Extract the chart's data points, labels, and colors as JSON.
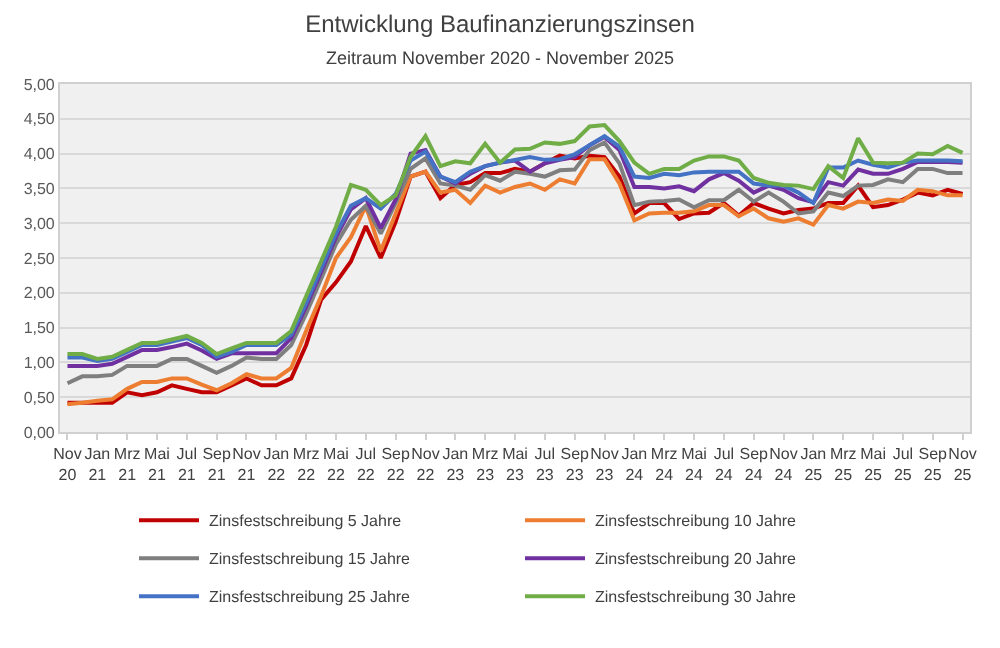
{
  "chart_data": {
    "type": "line",
    "title": "Entwicklung Baufinanzierungszinsen",
    "subtitle": "Zeitraum November 2020 - November 2025",
    "categories": [
      "Nov 20",
      null,
      "Jan 21",
      null,
      "Mrz 21",
      null,
      "Mai 21",
      null,
      "Jul 21",
      null,
      "Sep 21",
      null,
      "Nov 21",
      null,
      "Jan 22",
      null,
      "Mrz 22",
      null,
      "Mai 22",
      null,
      "Jul 22",
      null,
      "Sep 22",
      null,
      "Nov 22",
      null,
      "Jan 23",
      null,
      "Mrz 23",
      null,
      "Mai 23",
      null,
      "Jul 23",
      null,
      "Sep 23",
      null,
      "Nov 23",
      null,
      "Jan 24",
      null,
      "Mrz 24",
      null,
      "Mai 24",
      null,
      "Jul 24",
      null,
      "Sep 24",
      null,
      "Nov 24",
      null,
      "Jan 25",
      null,
      "Mrz 25",
      null,
      "Mai 25",
      null,
      "Jul 25",
      null,
      "Sep 25",
      null,
      "Nov 25"
    ],
    "series": [
      {
        "name": "Zinsfestschreibung 5 Jahre",
        "color": "#c00000",
        "values": [
          0.42,
          0.42,
          0.42,
          0.42,
          0.57,
          0.53,
          0.57,
          0.67,
          0.62,
          0.57,
          0.57,
          0.67,
          0.77,
          0.67,
          0.67,
          0.77,
          1.25,
          1.9,
          2.15,
          2.45,
          2.96,
          2.5,
          3.02,
          3.67,
          3.74,
          3.36,
          3.55,
          3.59,
          3.72,
          3.72,
          3.78,
          3.74,
          3.86,
          3.97,
          3.93,
          3.97,
          3.95,
          3.67,
          3.14,
          3.29,
          3.29,
          3.06,
          3.14,
          3.15,
          3.29,
          3.11,
          3.29,
          3.21,
          3.14,
          3.19,
          3.21,
          3.29,
          3.29,
          3.54,
          3.23,
          3.26,
          3.34,
          3.44,
          3.4,
          3.48,
          3.42
        ]
      },
      {
        "name": "Zinsfestschreibung 10 Jahre",
        "color": "#ed7d31",
        "values": [
          0.4,
          0.42,
          0.45,
          0.47,
          0.62,
          0.72,
          0.72,
          0.77,
          0.77,
          0.68,
          0.6,
          0.7,
          0.83,
          0.77,
          0.77,
          0.92,
          1.45,
          1.95,
          2.5,
          2.8,
          3.25,
          2.6,
          3.14,
          3.67,
          3.74,
          3.44,
          3.48,
          3.29,
          3.54,
          3.44,
          3.52,
          3.57,
          3.48,
          3.63,
          3.57,
          3.92,
          3.92,
          3.57,
          3.04,
          3.14,
          3.15,
          3.15,
          3.17,
          3.26,
          3.26,
          3.1,
          3.21,
          3.07,
          3.02,
          3.07,
          2.98,
          3.26,
          3.21,
          3.31,
          3.29,
          3.34,
          3.32,
          3.48,
          3.46,
          3.4,
          3.4
        ]
      },
      {
        "name": "Zinsfestschreibung 15 Jahre",
        "color": "#7f7f7f",
        "values": [
          0.7,
          0.8,
          0.8,
          0.82,
          0.95,
          0.95,
          0.95,
          1.05,
          1.05,
          0.95,
          0.85,
          0.95,
          1.07,
          1.05,
          1.05,
          1.25,
          1.7,
          2.2,
          2.7,
          3.05,
          3.25,
          2.85,
          3.29,
          3.78,
          3.93,
          3.57,
          3.54,
          3.48,
          3.69,
          3.61,
          3.74,
          3.71,
          3.67,
          3.76,
          3.77,
          4.05,
          4.16,
          3.86,
          3.26,
          3.31,
          3.32,
          3.34,
          3.23,
          3.33,
          3.33,
          3.48,
          3.31,
          3.44,
          3.31,
          3.14,
          3.17,
          3.44,
          3.39,
          3.54,
          3.55,
          3.63,
          3.59,
          3.78,
          3.78,
          3.72,
          3.72
        ]
      },
      {
        "name": "Zinsfestschreibung 20 Jahre",
        "color": "#7030a0",
        "values": [
          0.95,
          0.95,
          0.95,
          0.98,
          1.08,
          1.18,
          1.18,
          1.22,
          1.27,
          1.17,
          1.05,
          1.13,
          1.13,
          1.13,
          1.13,
          1.35,
          1.8,
          2.3,
          2.8,
          3.2,
          3.36,
          2.93,
          3.34,
          4.0,
          4.05,
          3.67,
          3.57,
          3.71,
          3.82,
          3.87,
          3.9,
          3.74,
          3.86,
          3.91,
          3.95,
          4.12,
          4.24,
          4.05,
          3.52,
          3.52,
          3.5,
          3.53,
          3.46,
          3.63,
          3.72,
          3.61,
          3.44,
          3.54,
          3.48,
          3.36,
          3.3,
          3.59,
          3.54,
          3.77,
          3.71,
          3.71,
          3.78,
          3.88,
          3.88,
          3.88,
          3.87
        ]
      },
      {
        "name": "Zinsfestschreibung 25 Jahre",
        "color": "#4472c4",
        "values": [
          1.07,
          1.07,
          1.02,
          1.05,
          1.15,
          1.25,
          1.25,
          1.3,
          1.35,
          1.25,
          1.08,
          1.15,
          1.25,
          1.25,
          1.25,
          1.4,
          1.85,
          2.35,
          2.85,
          3.25,
          3.36,
          3.21,
          3.42,
          3.9,
          4.03,
          3.67,
          3.59,
          3.74,
          3.82,
          3.87,
          3.91,
          3.95,
          3.91,
          3.92,
          3.99,
          4.12,
          4.25,
          4.1,
          3.67,
          3.65,
          3.71,
          3.69,
          3.73,
          3.74,
          3.74,
          3.74,
          3.57,
          3.54,
          3.54,
          3.44,
          3.29,
          3.8,
          3.8,
          3.9,
          3.84,
          3.8,
          3.87,
          3.9,
          3.9,
          3.9,
          3.89
        ]
      },
      {
        "name": "Zinsfestschreibung 30 Jahre",
        "color": "#70ad47",
        "values": [
          1.12,
          1.12,
          1.05,
          1.08,
          1.18,
          1.28,
          1.28,
          1.33,
          1.38,
          1.28,
          1.12,
          1.2,
          1.28,
          1.28,
          1.28,
          1.45,
          1.95,
          2.45,
          2.95,
          3.55,
          3.48,
          3.26,
          3.4,
          3.95,
          4.25,
          3.82,
          3.89,
          3.86,
          4.14,
          3.87,
          4.06,
          4.07,
          4.16,
          4.14,
          4.18,
          4.39,
          4.41,
          4.18,
          3.87,
          3.71,
          3.78,
          3.78,
          3.9,
          3.96,
          3.96,
          3.9,
          3.65,
          3.58,
          3.55,
          3.54,
          3.49,
          3.82,
          3.65,
          4.22,
          3.87,
          3.86,
          3.87,
          4.0,
          3.99,
          4.11,
          4.01
        ]
      }
    ],
    "ylim": [
      0,
      5
    ],
    "yticks": [
      {
        "value": 0,
        "label": "0,00"
      },
      {
        "value": 0.5,
        "label": "0,50"
      },
      {
        "value": 1,
        "label": "1,00"
      },
      {
        "value": 1.5,
        "label": "1,50"
      },
      {
        "value": 2,
        "label": "2,00"
      },
      {
        "value": 2.5,
        "label": "2,50"
      },
      {
        "value": 3,
        "label": "3,00"
      },
      {
        "value": 3.5,
        "label": "3,50"
      },
      {
        "value": 4,
        "label": "4,00"
      },
      {
        "value": 4.5,
        "label": "4,50"
      },
      {
        "value": 5,
        "label": "5,00"
      }
    ],
    "grid": "y",
    "legend": "bottom",
    "marker": "none",
    "line_style": "solid"
  }
}
